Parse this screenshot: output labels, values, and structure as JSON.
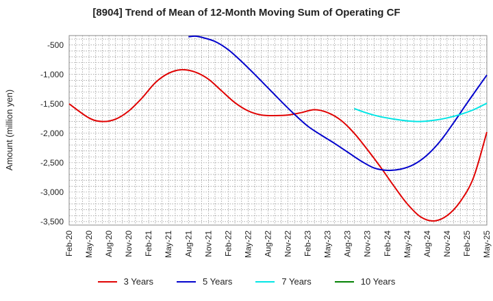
{
  "chart_data": {
    "type": "line",
    "title": "[8904]  Trend of Mean of 12-Month Moving Sum of Operating CF",
    "xlabel": "",
    "ylabel": "Amount (million yen)",
    "ylim": [
      -3560,
      -340
    ],
    "yticks": [
      -500,
      -1000,
      -1500,
      -2000,
      -2500,
      -3000,
      -3500
    ],
    "ytick_labels": [
      "-500",
      "-1,000",
      "-1,500",
      "-2,000",
      "-2,500",
      "-3,000",
      "-3,500"
    ],
    "xlim": [
      0,
      63
    ],
    "xticks": [
      0,
      3,
      6,
      9,
      12,
      15,
      18,
      21,
      24,
      27,
      30,
      33,
      36,
      39,
      42,
      45,
      48,
      51,
      54,
      57,
      60,
      63
    ],
    "xtick_labels": [
      "Feb-20",
      "May-20",
      "Aug-20",
      "Nov-20",
      "Feb-21",
      "May-21",
      "Aug-21",
      "Nov-21",
      "Feb-22",
      "May-22",
      "Aug-22",
      "Nov-22",
      "Feb-23",
      "May-23",
      "Aug-23",
      "Nov-23",
      "Feb-24",
      "May-24",
      "Aug-24",
      "Nov-24",
      "Feb-25",
      "May-25"
    ],
    "grid": true,
    "legend_position": "bottom",
    "series": [
      {
        "name": "3 Years",
        "color": "#e00000",
        "points": [
          [
            0,
            -1500
          ],
          [
            3,
            -1740
          ],
          [
            5,
            -1800
          ],
          [
            7,
            -1760
          ],
          [
            9,
            -1620
          ],
          [
            11,
            -1400
          ],
          [
            13,
            -1140
          ],
          [
            15,
            -980
          ],
          [
            17,
            -920
          ],
          [
            19,
            -960
          ],
          [
            21,
            -1080
          ],
          [
            23,
            -1280
          ],
          [
            25,
            -1480
          ],
          [
            27,
            -1620
          ],
          [
            29,
            -1690
          ],
          [
            31,
            -1700
          ],
          [
            33,
            -1690
          ],
          [
            35,
            -1650
          ],
          [
            37,
            -1600
          ],
          [
            39,
            -1650
          ],
          [
            41,
            -1780
          ],
          [
            43,
            -2000
          ],
          [
            45,
            -2280
          ],
          [
            47,
            -2580
          ],
          [
            49,
            -2900
          ],
          [
            51,
            -3200
          ],
          [
            53,
            -3420
          ],
          [
            55,
            -3490
          ],
          [
            57,
            -3400
          ],
          [
            59,
            -3160
          ],
          [
            61,
            -2750
          ],
          [
            63,
            -1980
          ]
        ]
      },
      {
        "name": "5 Years",
        "color": "#0000cc",
        "points": [
          [
            18,
            -360
          ],
          [
            19,
            -350
          ],
          [
            20,
            -370
          ],
          [
            22,
            -440
          ],
          [
            24,
            -580
          ],
          [
            26,
            -780
          ],
          [
            28,
            -1000
          ],
          [
            30,
            -1230
          ],
          [
            32,
            -1460
          ],
          [
            34,
            -1680
          ],
          [
            36,
            -1880
          ],
          [
            38,
            -2030
          ],
          [
            40,
            -2170
          ],
          [
            42,
            -2320
          ],
          [
            44,
            -2470
          ],
          [
            46,
            -2590
          ],
          [
            48,
            -2630
          ],
          [
            50,
            -2610
          ],
          [
            52,
            -2530
          ],
          [
            54,
            -2370
          ],
          [
            56,
            -2130
          ],
          [
            58,
            -1820
          ],
          [
            60,
            -1490
          ],
          [
            62,
            -1170
          ],
          [
            63,
            -1010
          ]
        ]
      },
      {
        "name": "7 Years",
        "color": "#00e5e5",
        "points": [
          [
            43,
            -1580
          ],
          [
            45,
            -1660
          ],
          [
            47,
            -1720
          ],
          [
            49,
            -1760
          ],
          [
            51,
            -1790
          ],
          [
            53,
            -1800
          ],
          [
            55,
            -1780
          ],
          [
            57,
            -1740
          ],
          [
            59,
            -1680
          ],
          [
            61,
            -1600
          ],
          [
            63,
            -1490
          ]
        ]
      },
      {
        "name": "10 Years",
        "color": "#008000",
        "points": []
      }
    ]
  }
}
